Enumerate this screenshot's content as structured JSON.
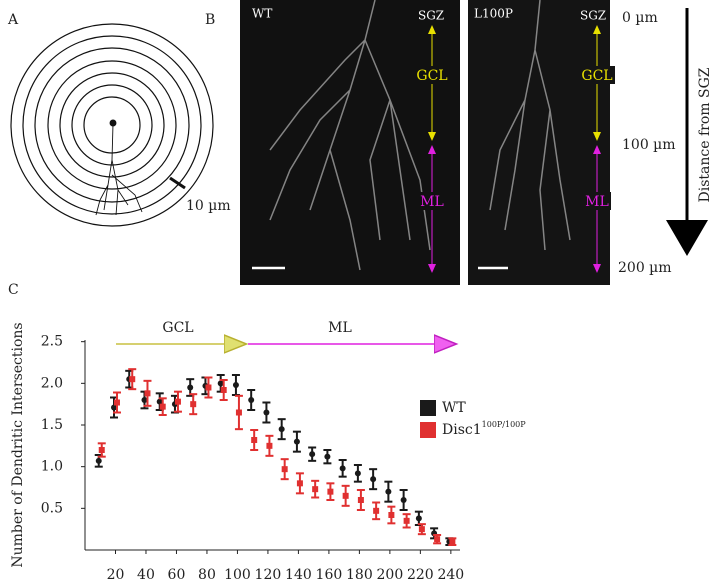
{
  "panels": {
    "A": {
      "label": "A",
      "scale": "10 µm"
    },
    "B": {
      "label": "B",
      "left": {
        "title": "WT",
        "top": "SGZ",
        "mid": "GCL",
        "low": "ML"
      },
      "right": {
        "title": "L100P",
        "top": "SGZ",
        "mid": "GCL",
        "low": "ML"
      },
      "distance": {
        "ticks": [
          "0 µm",
          "100 µm",
          "200 µm"
        ],
        "axis_label": "Distance from SGZ"
      }
    },
    "C": {
      "label": "C"
    }
  },
  "chart_data": {
    "type": "errorbar",
    "ylabel": "Number of Dendritic Intersections",
    "annotations": [
      "GCL",
      "ML"
    ],
    "x": [
      10,
      20,
      30,
      40,
      50,
      60,
      70,
      80,
      90,
      100,
      110,
      120,
      130,
      140,
      150,
      160,
      170,
      180,
      190,
      200,
      210,
      220,
      230,
      240
    ],
    "series": [
      {
        "name": "WT",
        "color": "#1a1a1a",
        "marker": "circle",
        "values": [
          1.07,
          1.71,
          2.05,
          1.8,
          1.78,
          1.75,
          1.95,
          1.97,
          2.0,
          1.98,
          1.8,
          1.65,
          1.45,
          1.3,
          1.15,
          1.12,
          0.98,
          0.92,
          0.85,
          0.7,
          0.6,
          0.38,
          0.2,
          0.1
        ],
        "errors": [
          0.07,
          0.12,
          0.1,
          0.1,
          0.1,
          0.1,
          0.1,
          0.1,
          0.1,
          0.12,
          0.12,
          0.12,
          0.12,
          0.12,
          0.08,
          0.08,
          0.1,
          0.1,
          0.12,
          0.12,
          0.12,
          0.08,
          0.06,
          0.04
        ]
      },
      {
        "name": "Disc1",
        "name_superscript": "100P/100P",
        "color": "#e03030",
        "marker": "square",
        "values": [
          1.2,
          1.77,
          2.05,
          1.88,
          1.72,
          1.78,
          1.75,
          1.95,
          1.92,
          1.65,
          1.32,
          1.25,
          0.97,
          0.8,
          0.73,
          0.7,
          0.65,
          0.6,
          0.47,
          0.42,
          0.35,
          0.25,
          0.13,
          0.1
        ],
        "errors": [
          0.08,
          0.12,
          0.12,
          0.15,
          0.1,
          0.12,
          0.12,
          0.12,
          0.12,
          0.2,
          0.12,
          0.12,
          0.12,
          0.12,
          0.1,
          0.1,
          0.12,
          0.12,
          0.1,
          0.1,
          0.08,
          0.06,
          0.05,
          0.04
        ]
      }
    ],
    "xlim": [
      0,
      246
    ],
    "xticks": [
      20,
      40,
      60,
      80,
      100,
      120,
      140,
      160,
      180,
      200,
      220,
      240
    ],
    "ylim": [
      0,
      2.52
    ],
    "yticks": [
      {
        "value": 0.5,
        "label": "0.5"
      },
      {
        "value": 1.0,
        "label": "1.0"
      },
      {
        "value": 1.5,
        "label": "1.5"
      },
      {
        "value": 2.0,
        "label": "2.0"
      },
      2.5
    ],
    "legend": "right"
  }
}
